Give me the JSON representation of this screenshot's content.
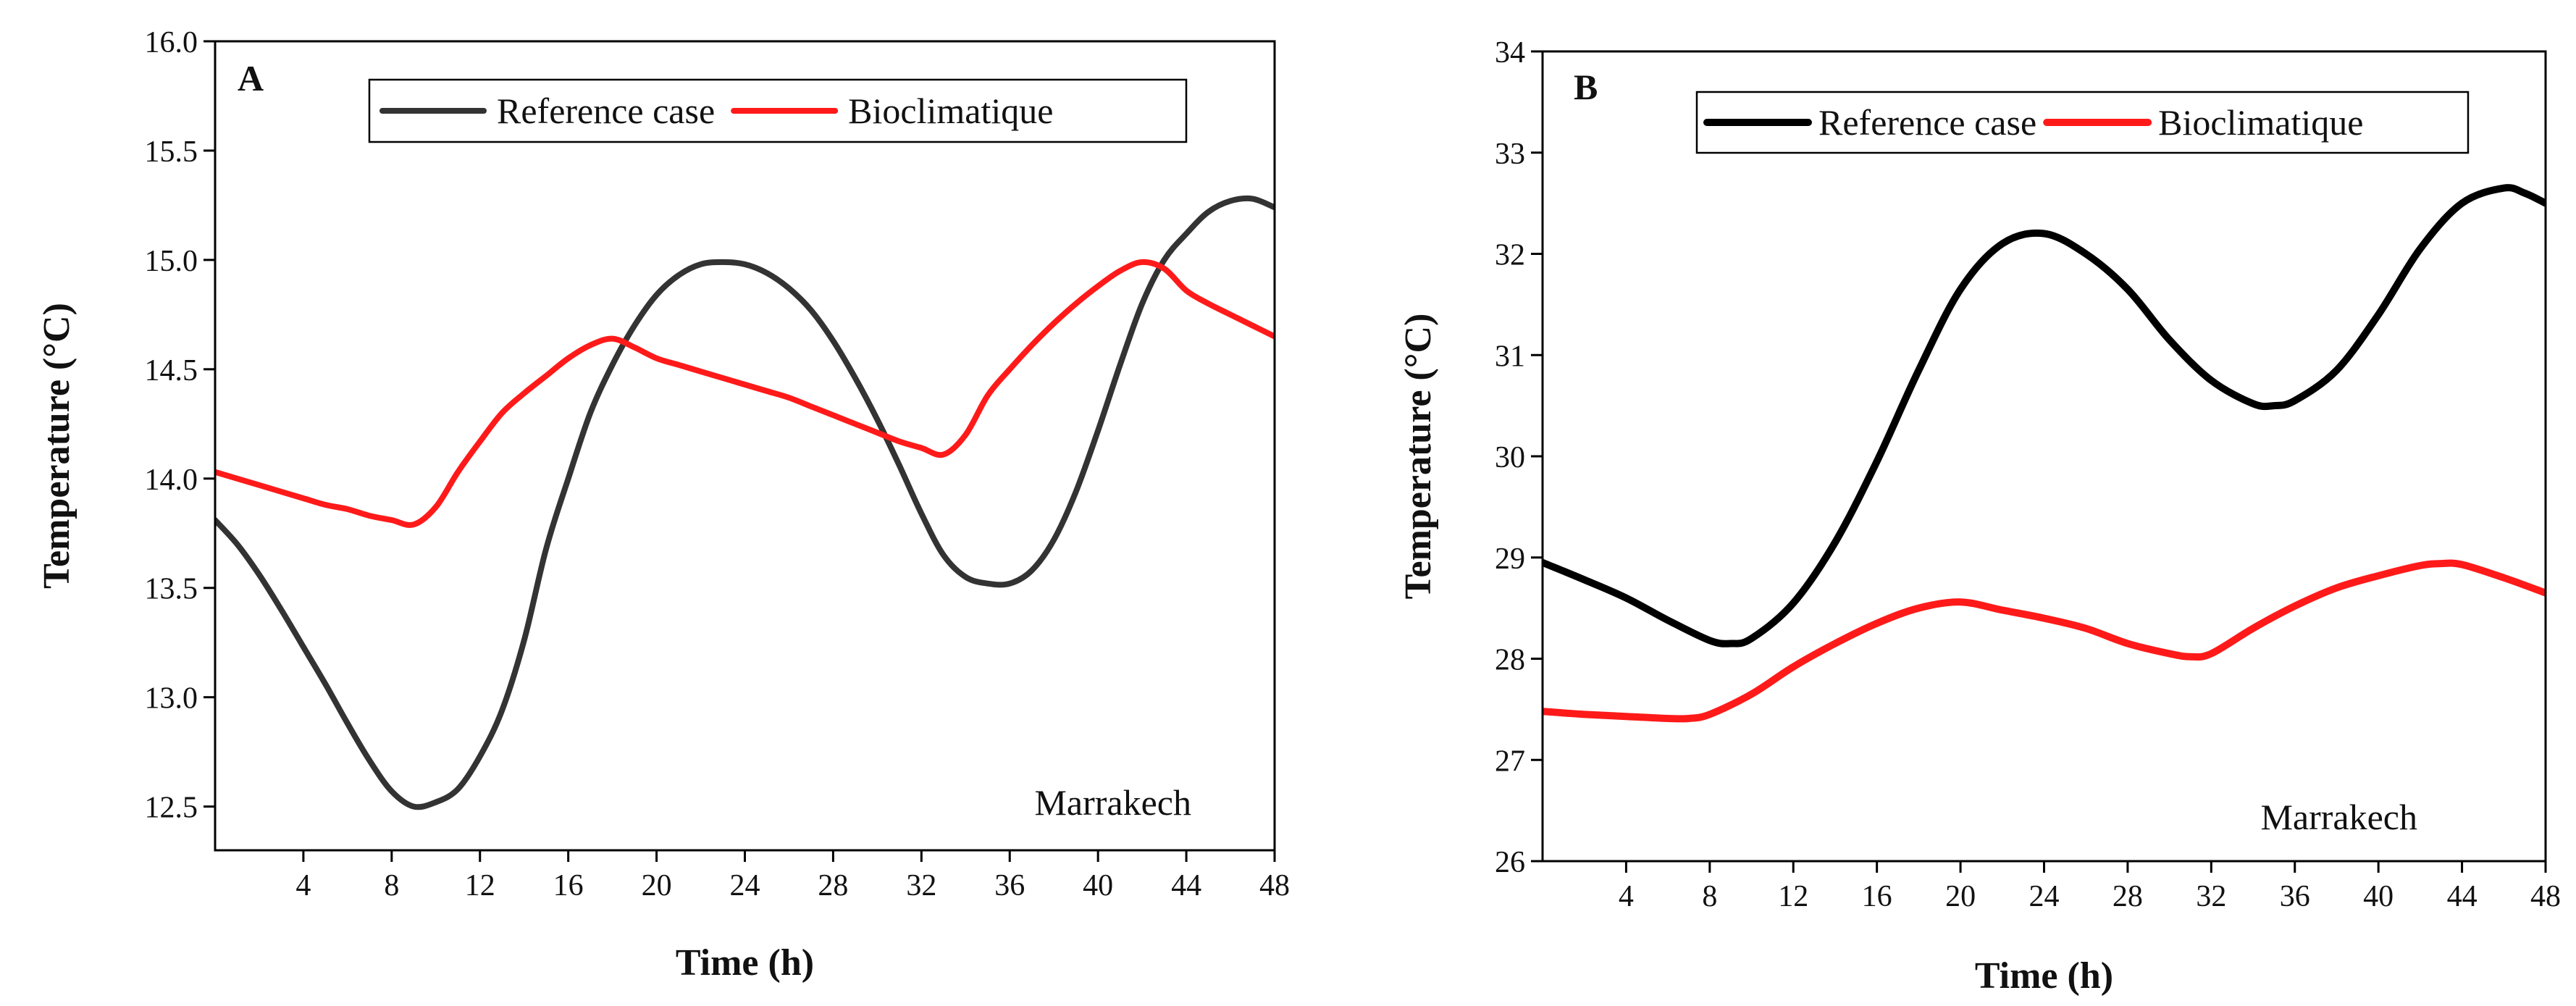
{
  "chart_data": [
    {
      "type": "line",
      "panel": "A",
      "xlabel": "Time (h)",
      "ylabel": "Temperature (°C)",
      "xlim": [
        0,
        48
      ],
      "ylim": [
        12.3,
        16.0
      ],
      "x_ticks": [
        4,
        8,
        12,
        16,
        20,
        24,
        28,
        32,
        36,
        40,
        44,
        48
      ],
      "y_ticks": [
        12.5,
        13.0,
        13.5,
        14.0,
        14.5,
        15.0,
        15.5,
        16.0
      ],
      "y_tick_labels": [
        "12.5",
        "13.0",
        "13.5",
        "14.0",
        "14.5",
        "15.0",
        "15.5",
        "16.0"
      ],
      "annotation": "Marrakech",
      "legend_position": "top-right",
      "series": [
        {
          "name": "Reference case",
          "color": "#333333",
          "x": [
            0,
            1,
            2,
            3,
            4,
            5,
            6,
            7,
            8,
            9,
            10,
            11,
            12,
            13,
            14,
            15,
            16,
            17,
            18,
            19,
            20,
            21,
            22,
            23,
            24,
            25,
            26,
            27,
            28,
            29,
            30,
            31,
            32,
            33,
            34,
            35,
            36,
            37,
            38,
            39,
            40,
            41,
            42,
            43,
            44,
            45,
            46,
            47,
            48
          ],
          "values": [
            13.81,
            13.7,
            13.56,
            13.4,
            13.23,
            13.06,
            12.88,
            12.71,
            12.57,
            12.5,
            12.52,
            12.58,
            12.73,
            12.94,
            13.26,
            13.68,
            14.0,
            14.3,
            14.52,
            14.7,
            14.84,
            14.93,
            14.98,
            14.99,
            14.98,
            14.94,
            14.87,
            14.77,
            14.63,
            14.46,
            14.27,
            14.06,
            13.84,
            13.65,
            13.55,
            13.52,
            13.52,
            13.58,
            13.72,
            13.94,
            14.22,
            14.52,
            14.8,
            15.0,
            15.12,
            15.22,
            15.27,
            15.28,
            15.24
          ]
        },
        {
          "name": "Bioclimatique",
          "color": "#ff1a1a",
          "x": [
            0,
            1,
            2,
            3,
            4,
            5,
            6,
            7,
            8,
            9,
            10,
            11,
            12,
            13,
            14,
            15,
            16,
            17,
            18,
            19,
            20,
            21,
            22,
            23,
            24,
            25,
            26,
            27,
            28,
            29,
            30,
            31,
            32,
            33,
            34,
            35,
            36,
            37,
            38,
            39,
            40,
            41,
            42,
            43,
            44,
            45,
            46,
            47,
            48
          ],
          "values": [
            14.03,
            14.0,
            13.97,
            13.94,
            13.91,
            13.88,
            13.86,
            13.83,
            13.81,
            13.79,
            13.87,
            14.03,
            14.17,
            14.3,
            14.39,
            14.47,
            14.55,
            14.61,
            14.64,
            14.6,
            14.55,
            14.52,
            14.49,
            14.46,
            14.43,
            14.4,
            14.37,
            14.33,
            14.29,
            14.25,
            14.21,
            14.17,
            14.14,
            14.11,
            14.2,
            14.38,
            14.5,
            14.61,
            14.71,
            14.8,
            14.88,
            14.95,
            14.99,
            14.96,
            14.86,
            14.8,
            14.75,
            14.7,
            14.65
          ]
        }
      ]
    },
    {
      "type": "line",
      "panel": "B",
      "xlabel": "Time (h)",
      "ylabel": "Temperature (°C)",
      "xlim": [
        0,
        48
      ],
      "ylim": [
        26,
        34
      ],
      "x_ticks": [
        4,
        8,
        12,
        16,
        20,
        24,
        28,
        32,
        36,
        40,
        44,
        48
      ],
      "y_ticks": [
        26,
        27,
        28,
        29,
        30,
        31,
        32,
        33,
        34
      ],
      "y_tick_labels": [
        "26",
        "27",
        "28",
        "29",
        "30",
        "31",
        "32",
        "33",
        "34"
      ],
      "annotation": "Marrakech",
      "legend_position": "top-right",
      "series": [
        {
          "name": "Reference case",
          "color": "#000000",
          "x": [
            0,
            2,
            4,
            6,
            8,
            9,
            10,
            12,
            14,
            16,
            18,
            20,
            22,
            24,
            26,
            28,
            30,
            32,
            34,
            35,
            36,
            38,
            40,
            42,
            44,
            46,
            47,
            48
          ],
          "values": [
            28.95,
            28.78,
            28.6,
            28.38,
            28.18,
            28.15,
            28.2,
            28.55,
            29.15,
            29.95,
            30.85,
            31.65,
            32.1,
            32.2,
            32.0,
            31.65,
            31.15,
            30.75,
            30.52,
            30.5,
            30.55,
            30.85,
            31.4,
            32.05,
            32.5,
            32.65,
            32.6,
            32.5
          ]
        },
        {
          "name": "Bioclimatique",
          "color": "#ff1a1a",
          "x": [
            0,
            2,
            4,
            6,
            7,
            8,
            10,
            12,
            14,
            16,
            18,
            20,
            22,
            24,
            26,
            28,
            30,
            31,
            32,
            34,
            36,
            38,
            40,
            42,
            43,
            44,
            46,
            48
          ],
          "values": [
            27.48,
            27.45,
            27.43,
            27.41,
            27.41,
            27.45,
            27.65,
            27.92,
            28.15,
            28.35,
            28.5,
            28.56,
            28.48,
            28.4,
            28.3,
            28.15,
            28.05,
            28.02,
            28.05,
            28.3,
            28.52,
            28.7,
            28.82,
            28.92,
            28.94,
            28.93,
            28.8,
            28.65
          ]
        }
      ]
    }
  ]
}
